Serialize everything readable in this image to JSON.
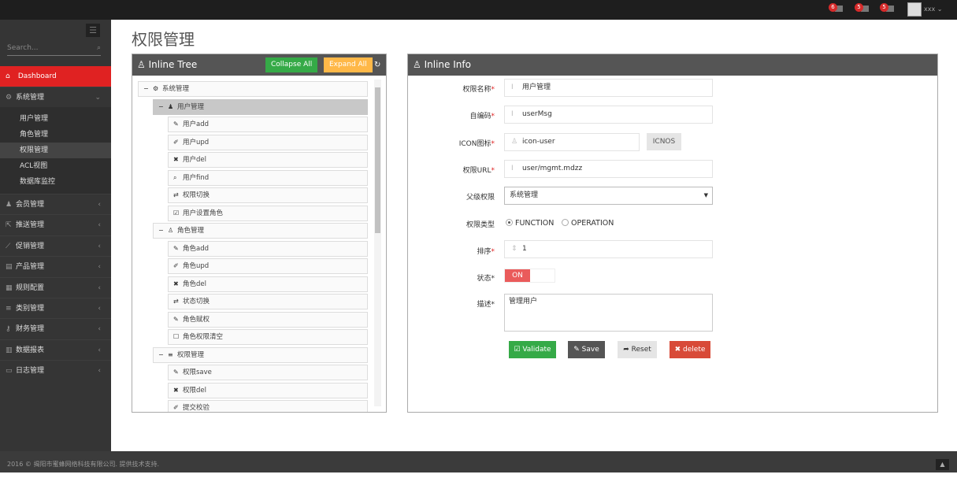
{
  "topbar": {
    "notifications": [
      {
        "count": "6",
        "icon": "warning-icon"
      },
      {
        "count": "5",
        "icon": "envelope-icon"
      },
      {
        "count": "5",
        "icon": "tasks-icon"
      }
    ],
    "user": "xxx"
  },
  "sidebar": {
    "search_placeholder": "Search...",
    "dashboard": "Dashboard",
    "system": "系统管理",
    "sub_items": [
      "用户管理",
      "角色管理",
      "权限管理",
      "ACL视图",
      "数据库监控"
    ],
    "active_sub": "权限管理",
    "items": [
      "会员管理",
      "推送管理",
      "促销管理",
      "产品管理",
      "规则配置",
      "类别管理",
      "财务管理",
      "数据报表",
      "日志管理"
    ]
  },
  "page_title": "权限管理",
  "tree_panel": {
    "title": "Inline Tree",
    "collapse": "Collapse All",
    "expand": "Expand All",
    "nodes": [
      {
        "label": "系统管理",
        "level": 1,
        "icon": "cogs-icon",
        "toggle": "−"
      },
      {
        "label": "用户管理",
        "level": 2,
        "icon": "user-icon",
        "toggle": "−",
        "selected": true
      },
      {
        "label": "用户add",
        "level": 3,
        "icon": "pencil-icon"
      },
      {
        "label": "用户upd",
        "level": 3,
        "icon": "edit-icon"
      },
      {
        "label": "用户del",
        "level": 3,
        "icon": "times-icon"
      },
      {
        "label": "用户find",
        "level": 3,
        "icon": "search-icon"
      },
      {
        "label": "权限切换",
        "level": 3,
        "icon": "retweet-icon"
      },
      {
        "label": "用户设置角色",
        "level": 3,
        "icon": "check-square-icon"
      },
      {
        "label": "角色管理",
        "level": 2,
        "icon": "sitemap-icon",
        "toggle": "−"
      },
      {
        "label": "角色add",
        "level": 3,
        "icon": "pencil-icon"
      },
      {
        "label": "角色upd",
        "level": 3,
        "icon": "edit-icon"
      },
      {
        "label": "角色del",
        "level": 3,
        "icon": "times-icon"
      },
      {
        "label": "状态切换",
        "level": 3,
        "icon": "retweet-icon"
      },
      {
        "label": "角色赋权",
        "level": 3,
        "icon": "pencil-icon"
      },
      {
        "label": "角色权限清空",
        "level": 3,
        "icon": "square-icon"
      },
      {
        "label": "权限管理",
        "level": 2,
        "icon": "bars-icon",
        "toggle": "−"
      },
      {
        "label": "权限save",
        "level": 3,
        "icon": "pencil-icon"
      },
      {
        "label": "权限del",
        "level": 3,
        "icon": "times-icon"
      },
      {
        "label": "提交校验",
        "level": 3,
        "icon": "edit-icon"
      }
    ]
  },
  "info_panel": {
    "title": "Inline Info",
    "fields": {
      "name_label": "权限名称",
      "name_value": "用户管理",
      "code_label": "自编码",
      "code_value": "userMsg",
      "icon_label": "ICON图标",
      "icon_value": "icon-user",
      "icons_btn": "ICNOS",
      "url_label": "权限URL",
      "url_value": "user/mgmt.mdzz",
      "parent_label": "父级权限",
      "parent_value": "系统管理",
      "type_label": "权限类型",
      "type_options": [
        "FUNCTION",
        "OPERATION"
      ],
      "type_selected": "FUNCTION",
      "order_label": "排序",
      "order_value": "1",
      "status_label": "状态",
      "status_value": "ON",
      "desc_label": "描述",
      "desc_value": "管理用户"
    },
    "buttons": {
      "validate": "Validate",
      "save": "Save",
      "reset": "Reset",
      "delete": "delete"
    }
  },
  "colors": {
    "accent": "#e02222",
    "green": "#35aa47",
    "orange": "#ffb848",
    "toggle_on": "#ea5b5b"
  },
  "footer": "2016 © 揭阳市蜜蜂网络科技有限公司. 提供技术支持."
}
